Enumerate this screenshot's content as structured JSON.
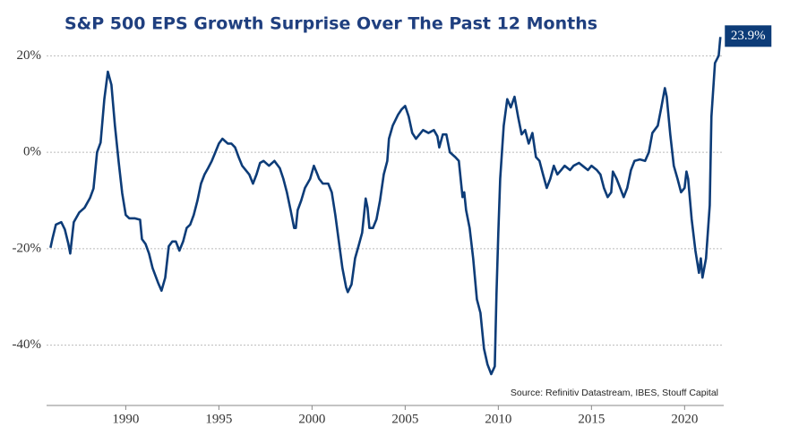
{
  "chart_data": {
    "type": "line",
    "title": "S&P 500 EPS Growth Surprise Over The Past 12 Months",
    "note": "Source: Refinitiv Datastream, IBES, Stouff Capital",
    "annotation": {
      "text": "23.9%"
    },
    "xlim": [
      1985.75,
      2022.1
    ],
    "xticks": [
      1990,
      1995,
      2000,
      2005,
      2010,
      2015,
      2020
    ],
    "ylim": [
      -52.5,
      26
    ],
    "yticks": [
      {
        "value": -40,
        "label": "-40%"
      },
      {
        "value": -20,
        "label": "-20%"
      },
      {
        "value": 0,
        "label": "0%"
      },
      {
        "value": 20,
        "label": "20%"
      }
    ],
    "grid": true,
    "series": [
      {
        "color": "#0d3c78",
        "x": [
          1985.96,
          1986.06,
          1986.25,
          1986.54,
          1986.73,
          1986.92,
          1987.02,
          1987.21,
          1987.5,
          1987.79,
          1988.08,
          1988.27,
          1988.46,
          1988.65,
          1988.85,
          1989.04,
          1989.23,
          1989.42,
          1989.62,
          1989.81,
          1990,
          1990.19,
          1990.48,
          1990.77,
          1990.87,
          1991.06,
          1991.25,
          1991.44,
          1991.73,
          1991.92,
          1992.12,
          1992.31,
          1992.5,
          1992.69,
          1992.88,
          1993.08,
          1993.27,
          1993.46,
          1993.65,
          1993.85,
          1994.04,
          1994.23,
          1994.42,
          1994.62,
          1994.81,
          1995.0,
          1995.19,
          1995.48,
          1995.67,
          1995.87,
          1996.06,
          1996.25,
          1996.44,
          1996.63,
          1996.83,
          1997.02,
          1997.21,
          1997.4,
          1997.69,
          1997.98,
          1998.27,
          1998.46,
          1998.65,
          1998.85,
          1999.04,
          1999.13,
          1999.23,
          1999.42,
          1999.62,
          1999.9,
          2000.1,
          2000.29,
          2000.38,
          2000.58,
          2000.87,
          2001.06,
          2001.25,
          2001.44,
          2001.63,
          2001.83,
          2001.92,
          2002.12,
          2002.31,
          2002.5,
          2002.69,
          2002.79,
          2002.88,
          2002.98,
          2003.08,
          2003.27,
          2003.46,
          2003.65,
          2003.85,
          2004.04,
          2004.13,
          2004.33,
          2004.62,
          2004.81,
          2005.0,
          2005.19,
          2005.38,
          2005.58,
          2005.77,
          2005.96,
          2006.25,
          2006.54,
          2006.73,
          2006.83,
          2007.02,
          2007.21,
          2007.4,
          2007.69,
          2007.88,
          2008.08,
          2008.17,
          2008.27,
          2008.46,
          2008.65,
          2008.85,
          2009.04,
          2009.23,
          2009.42,
          2009.62,
          2009.81,
          2009.9,
          2010.0,
          2010.1,
          2010.29,
          2010.48,
          2010.67,
          2010.87,
          2011.06,
          2011.25,
          2011.44,
          2011.63,
          2011.83,
          2012.02,
          2012.21,
          2012.4,
          2012.6,
          2012.79,
          2012.98,
          2013.17,
          2013.37,
          2013.56,
          2013.85,
          2014.04,
          2014.33,
          2014.52,
          2014.81,
          2015.0,
          2015.29,
          2015.48,
          2015.67,
          2015.87,
          2016.06,
          2016.15,
          2016.35,
          2016.54,
          2016.73,
          2016.92,
          2017.12,
          2017.31,
          2017.6,
          2017.88,
          2018.08,
          2018.27,
          2018.56,
          2018.75,
          2018.94,
          2019.04,
          2019.23,
          2019.42,
          2019.62,
          2019.81,
          2020.0,
          2020.1,
          2020.19,
          2020.38,
          2020.58,
          2020.77,
          2020.87,
          2020.96,
          2021.15,
          2021.35,
          2021.44,
          2021.63,
          2021.83,
          2021.92
        ],
        "values": [
          -19.8,
          -18,
          -15,
          -14.5,
          -16,
          -19,
          -21,
          -14.5,
          -12.5,
          -11.5,
          -9.5,
          -7.5,
          0,
          2,
          11,
          16.7,
          14,
          5.5,
          -2,
          -8.5,
          -13,
          -13.7,
          -13.7,
          -14,
          -18,
          -19,
          -21,
          -24,
          -27,
          -28.7,
          -26,
          -19.5,
          -18.5,
          -18.5,
          -20.4,
          -18.5,
          -15.7,
          -15,
          -13,
          -10,
          -6.5,
          -4.6,
          -3.3,
          -1.8,
          0,
          1.8,
          2.8,
          1.8,
          1.8,
          1,
          -1,
          -2.8,
          -3.7,
          -4.6,
          -6.5,
          -4.6,
          -2.2,
          -1.8,
          -2.8,
          -1.8,
          -3.3,
          -5.5,
          -8.3,
          -12,
          -15.7,
          -15.7,
          -12,
          -10,
          -7.4,
          -5.5,
          -2.8,
          -4.6,
          -5.5,
          -6.5,
          -6.5,
          -8.3,
          -13,
          -18.5,
          -24,
          -28,
          -29,
          -27.4,
          -22,
          -19.4,
          -16.7,
          -13,
          -9.6,
          -11.5,
          -15.7,
          -15.7,
          -13.9,
          -10,
          -4.6,
          -1.8,
          2.8,
          5.5,
          7.8,
          8.9,
          9.6,
          7.4,
          4,
          2.8,
          3.7,
          4.6,
          4,
          4.6,
          3.3,
          1,
          3.7,
          3.7,
          0,
          -1,
          -1.8,
          -9.3,
          -8.3,
          -12,
          -15.7,
          -22,
          -30.5,
          -33.3,
          -40.7,
          -44,
          -46,
          -44.4,
          -29.6,
          -16.7,
          -5.5,
          5.5,
          11,
          9.3,
          11.5,
          7.4,
          3.7,
          4.6,
          1.8,
          4,
          -1,
          -1.8,
          -4.6,
          -7.4,
          -5.5,
          -2.8,
          -4.6,
          -3.7,
          -2.8,
          -3.7,
          -2.8,
          -2.2,
          -2.8,
          -3.7,
          -2.8,
          -3.7,
          -4.6,
          -7.4,
          -9.3,
          -8.3,
          -4,
          -5.5,
          -7.4,
          -9.3,
          -7.4,
          -3.7,
          -1.8,
          -1.5,
          -1.8,
          0,
          4,
          5.5,
          9.3,
          13.3,
          11.5,
          3.7,
          -2.8,
          -5.5,
          -8.3,
          -7.4,
          -4,
          -5.5,
          -13.9,
          -20.4,
          -25,
          -22,
          -26,
          -22,
          -11,
          7.4,
          18.5,
          20,
          23.9
        ]
      }
    ]
  }
}
